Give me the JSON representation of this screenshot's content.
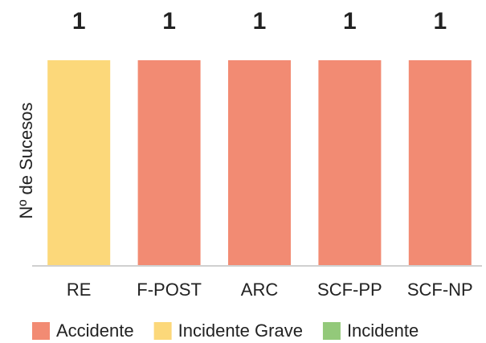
{
  "chart_data": {
    "type": "bar",
    "stacked": true,
    "y_label": "Nº de Sucesos",
    "categories": [
      "RE",
      "F-POST",
      "ARC",
      "SCF-PP",
      "SCF-NP"
    ],
    "series": [
      {
        "name": "Accidente",
        "color": "#f28b73",
        "values": [
          null,
          1,
          1,
          1,
          1
        ]
      },
      {
        "name": "Incidente Grave",
        "color": "#fcd87a",
        "values": [
          1,
          null,
          null,
          null,
          null
        ]
      },
      {
        "name": "Incidente",
        "color": "#93c97a",
        "values": [
          null,
          null,
          null,
          null,
          null
        ]
      }
    ],
    "ylim": [
      0,
      1
    ]
  }
}
